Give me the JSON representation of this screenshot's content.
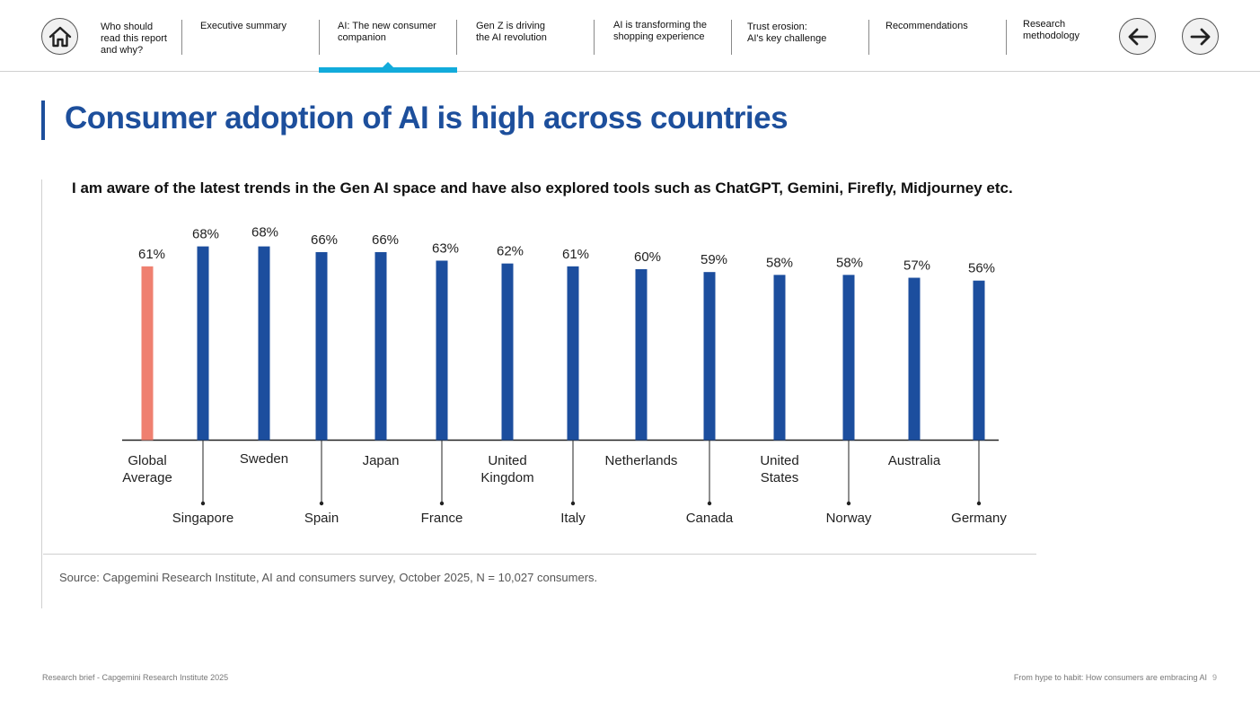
{
  "nav": {
    "items": [
      {
        "label": "Who should\nread this report\nand why?"
      },
      {
        "label": "Executive summary"
      },
      {
        "label": "AI: The new consumer\ncompanion"
      },
      {
        "label": "Gen Z is driving\nthe AI revolution"
      },
      {
        "label": "AI is transforming the\nshopping experience"
      },
      {
        "label": "Trust erosion:\nAI's key challenge"
      },
      {
        "label": "Recommendations"
      },
      {
        "label": "Research\nmethodology"
      }
    ],
    "active_index": 2
  },
  "page_title": "Consumer adoption of AI is high across countries",
  "chart_data": {
    "type": "bar",
    "title": "I am aware of the latest trends in the Gen AI space and have also explored tools such as ChatGPT, Gemini, Firefly, Midjourney etc.",
    "categories": [
      "Global Average",
      "Singapore",
      "Sweden",
      "Spain",
      "Japan",
      "France",
      "United Kingdom",
      "Italy",
      "Netherlands",
      "Canada",
      "United States",
      "Norway",
      "Australia",
      "Germany"
    ],
    "category_label_lines": [
      [
        "Global",
        "Average"
      ],
      [
        "Singapore"
      ],
      [
        "Sweden"
      ],
      [
        "Spain"
      ],
      [
        "Japan"
      ],
      [
        "France"
      ],
      [
        "United",
        "Kingdom"
      ],
      [
        "Italy"
      ],
      [
        "Netherlands"
      ],
      [
        "Canada"
      ],
      [
        "United",
        "States"
      ],
      [
        "Norway"
      ],
      [
        "Australia"
      ],
      [
        "Germany"
      ]
    ],
    "values": [
      61,
      68,
      68,
      66,
      66,
      63,
      62,
      61,
      60,
      59,
      58,
      58,
      57,
      56
    ],
    "value_labels": [
      "61%",
      "68%",
      "68%",
      "66%",
      "66%",
      "63%",
      "62%",
      "61%",
      "60%",
      "59%",
      "58%",
      "58%",
      "57%",
      "56%"
    ],
    "unit": "%",
    "colors": {
      "highlight": "#ef8070",
      "bar": "#1c4e9e",
      "axis": "#222222"
    },
    "highlight_index": 0,
    "grid": false
  },
  "source": "Source: Capgemini Research Institute, AI and consumers survey, October 2025, N = 10,027 consumers.",
  "footer": {
    "left": "Research brief - Capgemini Research Institute 2025",
    "right": "From hype to habit: How consumers are embracing AI",
    "page": "9"
  },
  "icons": {
    "home": "home-icon",
    "prev": "arrow-left-icon",
    "next": "arrow-right-icon"
  }
}
